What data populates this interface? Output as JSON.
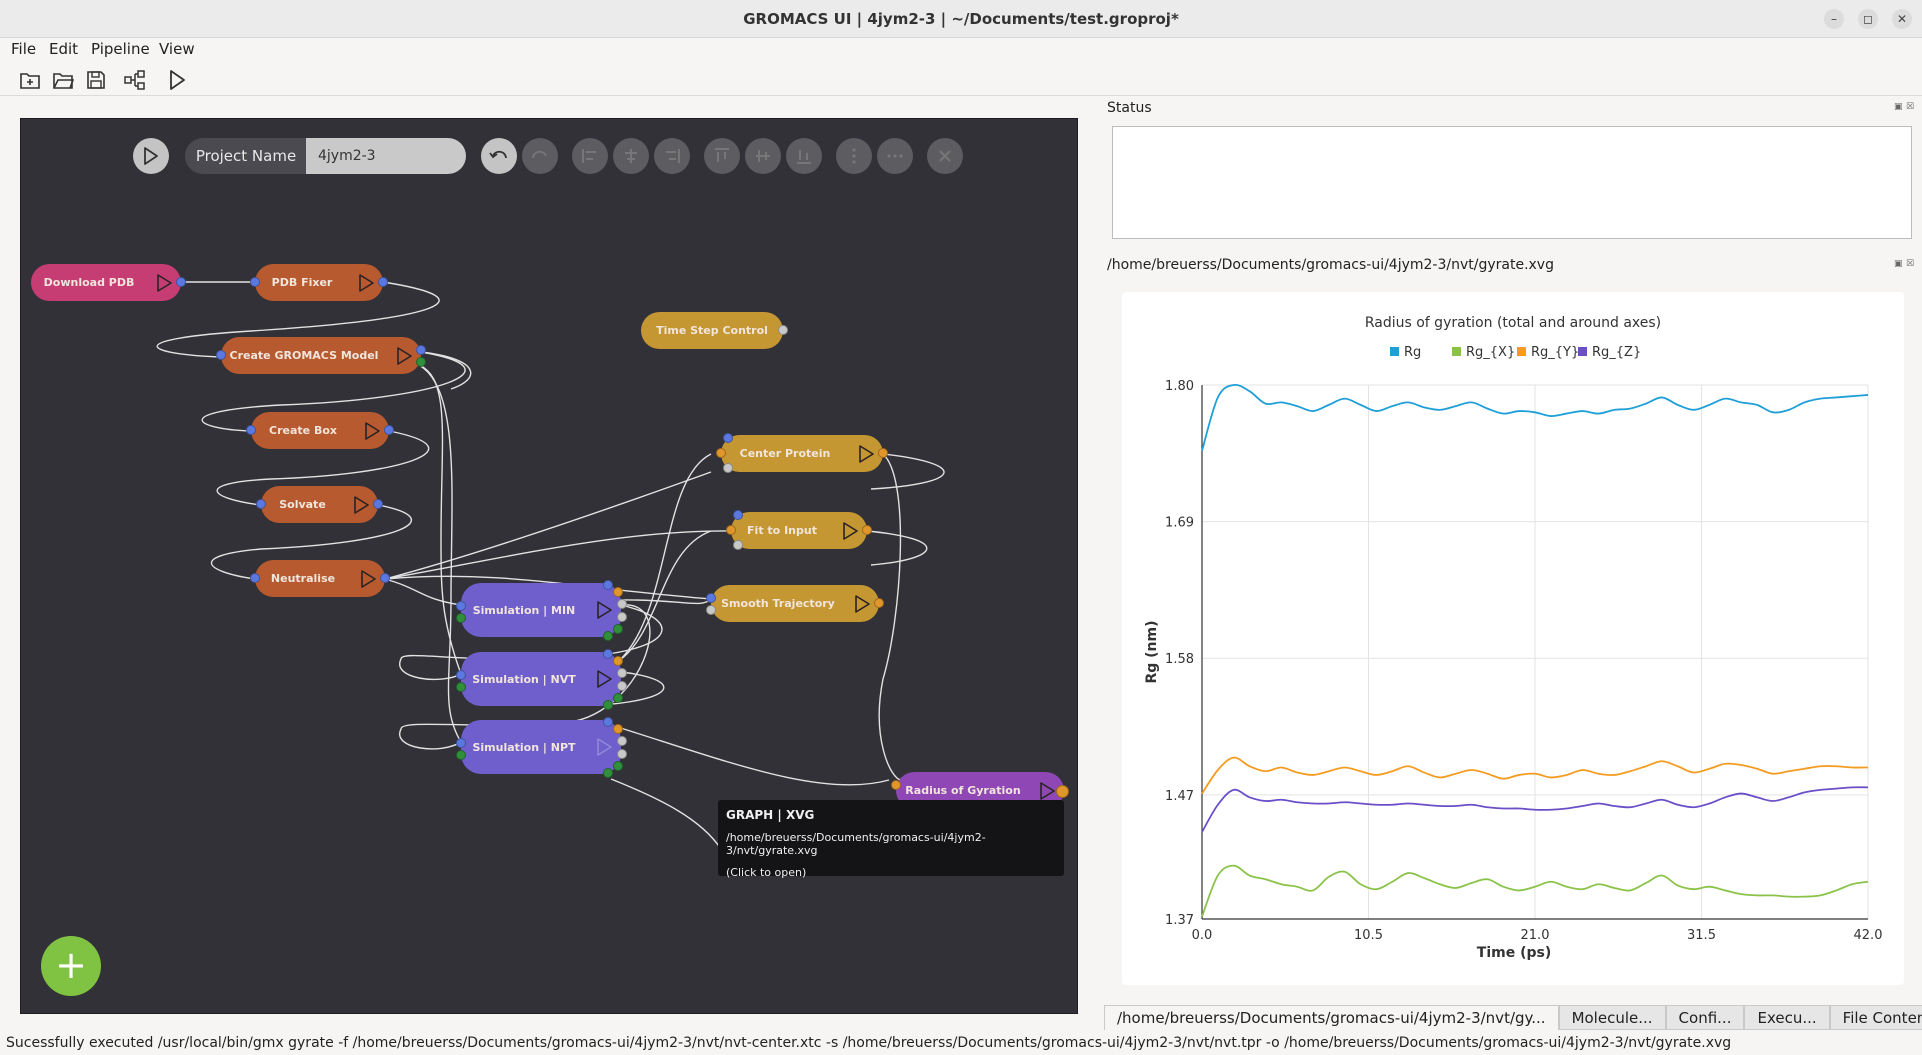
{
  "window": {
    "title": "GROMACS UI | 4jym2-3 | ~/Documents/test.groproj*"
  },
  "menu": {
    "file": "File",
    "edit": "Edit",
    "pipeline": "Pipeline",
    "view": "View"
  },
  "toolbar": {
    "icons": [
      "new-project-icon",
      "open-folder-icon",
      "save-icon",
      "pipeline-icon",
      "run-icon"
    ]
  },
  "editor": {
    "project_label": "Project Name",
    "project_name": "4jym2-3",
    "add_button": "+",
    "nodes": {
      "download_pdb": "Download PDB",
      "pdb_fixer": "PDB Fixer",
      "time_step_control": "Time Step Control",
      "create_model": "Create GROMACS Model",
      "create_box": "Create Box",
      "solvate": "Solvate",
      "neutralise": "Neutralise",
      "center_protein": "Center Protein",
      "fit_to_input": "Fit to Input",
      "smooth_trajectory": "Smooth Trajectory",
      "sim_min": "Simulation | MIN",
      "sim_nvt": "Simulation | NVT",
      "sim_npt": "Simulation | NPT",
      "radius_gyration": "Radius of Gyration"
    },
    "tooltip": {
      "title": "GRAPH | XVG",
      "path": "/home/breuerss/Documents/gromacs-ui/4jym2-3/nvt/gyrate.xvg",
      "hint": "(Click to open)"
    }
  },
  "status": {
    "title": "Status"
  },
  "file_view": {
    "path": "/home/breuerss/Documents/gromacs-ui/4jym2-3/nvt/gyrate.xvg"
  },
  "chart_data": {
    "type": "line",
    "title": "Radius of gyration (total and around axes)",
    "xlabel": "Time (ps)",
    "ylabel": "Rg (nm)",
    "xlim": [
      0,
      42
    ],
    "ylim": [
      1.37,
      1.8
    ],
    "xticks": [
      "0.0",
      "10.5",
      "21.0",
      "31.5",
      "42.0"
    ],
    "yticks": [
      "1.37",
      "1.47",
      "1.58",
      "1.69",
      "1.80"
    ],
    "legend_position": "top",
    "grid": true,
    "x": [
      0,
      1,
      2,
      3,
      4,
      5,
      6,
      7,
      8,
      9,
      10,
      11,
      12,
      13,
      14,
      15,
      16,
      17,
      18,
      19,
      20,
      21,
      22,
      23,
      24,
      25,
      26,
      27,
      28,
      29,
      30,
      31,
      32,
      33,
      34,
      35,
      36,
      37,
      38,
      39,
      40,
      41,
      42
    ],
    "series": [
      {
        "name": "Rg",
        "color": "#1f9fd8",
        "values": [
          1.747,
          1.79,
          1.8,
          1.795,
          1.785,
          1.786,
          1.783,
          1.779,
          1.784,
          1.789,
          1.784,
          1.779,
          1.783,
          1.786,
          1.782,
          1.78,
          1.783,
          1.786,
          1.781,
          1.777,
          1.779,
          1.778,
          1.775,
          1.777,
          1.779,
          1.777,
          1.78,
          1.781,
          1.785,
          1.79,
          1.784,
          1.78,
          1.784,
          1.789,
          1.786,
          1.784,
          1.778,
          1.78,
          1.786,
          1.789,
          1.79,
          1.791,
          1.792
        ]
      },
      {
        "name": "Rg_{X}",
        "color": "#8bc34a",
        "values": [
          1.372,
          1.405,
          1.413,
          1.405,
          1.402,
          1.398,
          1.396,
          1.393,
          1.404,
          1.408,
          1.398,
          1.394,
          1.4,
          1.407,
          1.403,
          1.398,
          1.395,
          1.399,
          1.402,
          1.396,
          1.393,
          1.396,
          1.4,
          1.396,
          1.394,
          1.398,
          1.395,
          1.393,
          1.399,
          1.405,
          1.397,
          1.394,
          1.396,
          1.393,
          1.39,
          1.389,
          1.389,
          1.388,
          1.388,
          1.389,
          1.393,
          1.398,
          1.4
        ]
      },
      {
        "name": "Rg_{Y}",
        "color": "#f39c21",
        "values": [
          1.471,
          1.49,
          1.5,
          1.493,
          1.489,
          1.492,
          1.488,
          1.486,
          1.489,
          1.492,
          1.489,
          1.486,
          1.489,
          1.493,
          1.488,
          1.484,
          1.487,
          1.49,
          1.487,
          1.483,
          1.486,
          1.487,
          1.484,
          1.486,
          1.49,
          1.487,
          1.486,
          1.489,
          1.493,
          1.497,
          1.493,
          1.488,
          1.491,
          1.495,
          1.494,
          1.491,
          1.487,
          1.489,
          1.491,
          1.493,
          1.493,
          1.492,
          1.492
        ]
      },
      {
        "name": "Rg_{Z}",
        "color": "#6a4fc8",
        "values": [
          1.44,
          1.462,
          1.474,
          1.468,
          1.465,
          1.466,
          1.464,
          1.463,
          1.463,
          1.464,
          1.463,
          1.462,
          1.462,
          1.463,
          1.462,
          1.461,
          1.461,
          1.462,
          1.46,
          1.459,
          1.459,
          1.458,
          1.458,
          1.459,
          1.461,
          1.463,
          1.461,
          1.46,
          1.463,
          1.466,
          1.462,
          1.46,
          1.463,
          1.468,
          1.471,
          1.468,
          1.465,
          1.468,
          1.472,
          1.474,
          1.475,
          1.476,
          1.476
        ]
      }
    ]
  },
  "bottom_tabs": [
    "/home/breuerss/Documents/gromacs-ui/4jym2-3/nvt/gy...",
    "Molecule...",
    "Confi...",
    "Execu...",
    "File Content..."
  ],
  "statusbar": {
    "message": "Sucessfully executed /usr/local/bin/gmx gyrate -f /home/breuerss/Documents/gromacs-ui/4jym2-3/nvt/nvt-center.xtc -s /home/breuerss/Documents/gromacs-ui/4jym2-3/nvt/nvt.tpr -o /home/breuerss/Documents/gromacs-ui/4jym2-3/nvt/gyrate.xvg"
  }
}
